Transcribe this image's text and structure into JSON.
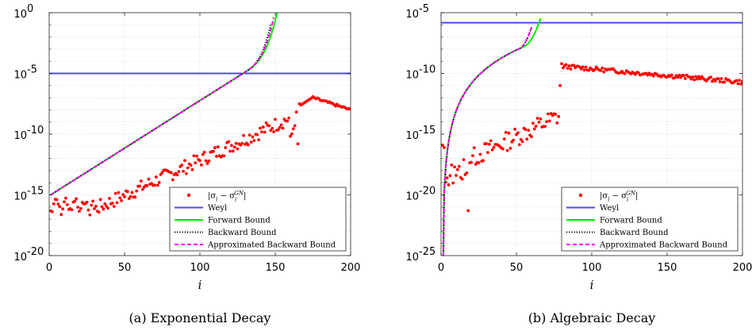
{
  "chart_data": [
    {
      "type": "line",
      "caption": "(a) Exponential Decay",
      "xlabel": "i",
      "ylabel": "",
      "xlim": [
        0,
        200
      ],
      "ylim": [
        1e-20,
        1
      ],
      "yscale": "log",
      "xticks": [
        0,
        50,
        100,
        150,
        200
      ],
      "yticks": [
        {
          "exp": 0
        },
        {
          "exp": -5
        },
        {
          "exp": -10
        },
        {
          "exp": -15
        },
        {
          "exp": -20
        }
      ],
      "grid": true,
      "legend_position": "lower-right",
      "series": [
        {
          "name": "|σ_i − σ_i^GN|",
          "kind": "scatter",
          "color": "#ff0000",
          "y_func": "exp_err",
          "x_range": [
            1,
            200
          ]
        },
        {
          "name": "Weyl",
          "kind": "line",
          "color": "#4a4af0",
          "y_const": 1e-05,
          "x_range": [
            0,
            200
          ]
        },
        {
          "name": "Forward Bound",
          "kind": "line",
          "color": "#00ee00",
          "y_func": "exp_forward",
          "x_range": [
            1,
            155
          ]
        },
        {
          "name": "Backward Bound",
          "kind": "dotted",
          "color": "#000000",
          "y_func": "exp_backward",
          "x_range": [
            1,
            147
          ]
        },
        {
          "name": "Approximated Backward Bound",
          "kind": "dashed",
          "color": "#ee00ee",
          "y_func": "exp_approx",
          "x_range": [
            1,
            149
          ]
        }
      ]
    },
    {
      "type": "line",
      "caption": "(b) Algebraic Decay",
      "xlabel": "i",
      "ylabel": "",
      "xlim": [
        0,
        200
      ],
      "ylim": [
        1e-25,
        1e-05
      ],
      "yscale": "log",
      "xticks": [
        0,
        50,
        100,
        150,
        200
      ],
      "yticks": [
        {
          "exp": -5
        },
        {
          "exp": -10
        },
        {
          "exp": -15
        },
        {
          "exp": -20
        },
        {
          "exp": -25
        }
      ],
      "grid": true,
      "legend_position": "lower-right",
      "series": [
        {
          "name": "|σ_i − σ_i^GN|",
          "kind": "scatter",
          "color": "#ff0000",
          "y_func": "alg_err",
          "x_range": [
            1,
            200
          ]
        },
        {
          "name": "Weyl",
          "kind": "line",
          "color": "#4a4af0",
          "y_const": 1.5e-06,
          "x_range": [
            0,
            200
          ]
        },
        {
          "name": "Forward Bound",
          "kind": "line",
          "color": "#00ee00",
          "y_func": "alg_forward",
          "x_range": [
            1,
            66
          ]
        },
        {
          "name": "Backward Bound",
          "kind": "dotted",
          "color": "#000000",
          "y_func": "alg_backward",
          "x_range": [
            1,
            60
          ]
        },
        {
          "name": "Approximated Backward Bound",
          "kind": "dashed",
          "color": "#ee00ee",
          "y_func": "alg_approx",
          "x_range": [
            1,
            60
          ]
        }
      ]
    }
  ]
}
